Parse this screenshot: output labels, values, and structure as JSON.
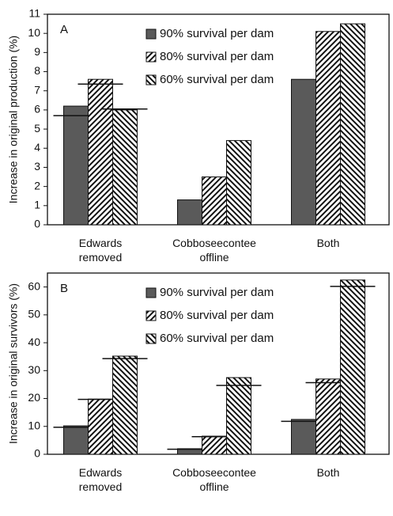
{
  "chart_data": [
    {
      "type": "bar",
      "panel_label": "A",
      "y_label": "Increase in original production (%)",
      "categories": [
        "Edwards removed",
        "Cobboseecontee offline",
        "Both"
      ],
      "ylim": [
        0,
        11
      ],
      "yticks": [
        0,
        1,
        2,
        3,
        4,
        5,
        6,
        7,
        8,
        9,
        10,
        11
      ],
      "legend": "upper center",
      "series": [
        {
          "name": "90% survival per dam",
          "color": "#5a5a5a",
          "pattern": "solid",
          "values": [
            6.2,
            1.3,
            7.6
          ],
          "reference": [
            5.7,
            null,
            null
          ]
        },
        {
          "name": "80% survival per dam",
          "color": "#111111",
          "pattern": "forward",
          "values": [
            7.6,
            2.5,
            10.1
          ],
          "reference": [
            7.35,
            null,
            null
          ]
        },
        {
          "name": "60% survival per dam",
          "color": "#111111",
          "pattern": "backward",
          "values": [
            6.0,
            4.4,
            10.5
          ],
          "reference": [
            6.05,
            null,
            null
          ]
        }
      ]
    },
    {
      "type": "bar",
      "panel_label": "B",
      "y_label": "Increase in original survivors (%)",
      "categories": [
        "Edwards removed",
        "Cobboseecontee offline",
        "Both"
      ],
      "ylim": [
        0,
        65
      ],
      "yticks": [
        0,
        10,
        20,
        30,
        40,
        50,
        60
      ],
      "legend": "upper center",
      "series": [
        {
          "name": "90% survival per dam",
          "color": "#5a5a5a",
          "pattern": "solid",
          "values": [
            10.2,
            2.0,
            12.5
          ],
          "reference": [
            9.7,
            1.8,
            11.8
          ]
        },
        {
          "name": "80% survival per dam",
          "color": "#111111",
          "pattern": "forward",
          "values": [
            19.8,
            6.5,
            27.0
          ],
          "reference": [
            19.7,
            6.3,
            25.7
          ]
        },
        {
          "name": "60% survival per dam",
          "color": "#111111",
          "pattern": "backward",
          "values": [
            35.2,
            27.5,
            62.5
          ],
          "reference": [
            34.3,
            24.7,
            60.2
          ]
        }
      ]
    }
  ]
}
